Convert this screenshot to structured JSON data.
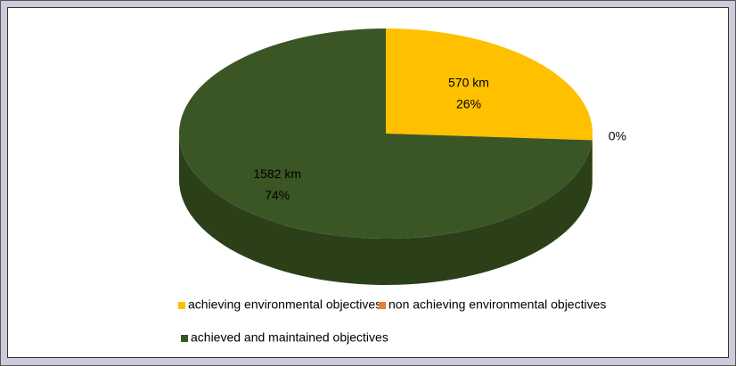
{
  "chart_data": {
    "type": "pie3d",
    "categories": [
      "achieving environmental objectives",
      "non achieving environmental objectives",
      "achieved and maintained objectives"
    ],
    "values": [
      26,
      0,
      74
    ],
    "value_labels": [
      "26%",
      "0%",
      "74%"
    ],
    "lengths_km": [
      570,
      null,
      1582
    ],
    "length_labels": [
      "570 km",
      null,
      "1582 km"
    ],
    "colors": [
      "#ffc000",
      "#ed7d31",
      "#3b5625"
    ],
    "side_colors": [
      "#c79600",
      "#b85f22",
      "#2b4019"
    ]
  }
}
